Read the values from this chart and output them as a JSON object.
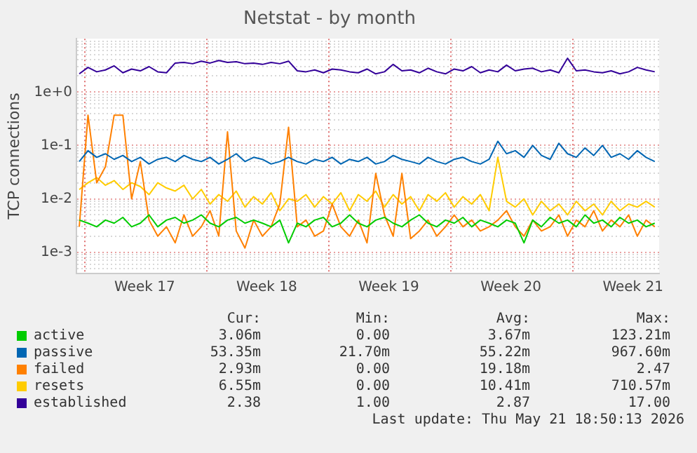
{
  "chart_data": {
    "type": "line",
    "title": "Netstat - by month",
    "ylabel": "TCP connections",
    "log": "y",
    "grid": "y",
    "legend": "bottom",
    "x": [
      "2026-04-18T18:00",
      "2026-04-19T06:00",
      "2026-04-19T18:00",
      "2026-04-20T06:00",
      "2026-04-20T18:00",
      "2026-04-21T06:00",
      "2026-04-21T18:00",
      "2026-04-22T06:00",
      "2026-04-22T18:00",
      "2026-04-23T06:00",
      "2026-04-23T18:00",
      "2026-04-24T06:00",
      "2026-04-24T18:00",
      "2026-04-25T06:00",
      "2026-04-25T18:00",
      "2026-04-26T06:00",
      "2026-04-26T18:00",
      "2026-04-27T06:00",
      "2026-04-27T18:00",
      "2026-04-28T06:00",
      "2026-04-28T18:00",
      "2026-04-29T06:00",
      "2026-04-29T18:00",
      "2026-04-30T06:00",
      "2026-04-30T18:00",
      "2026-05-01T06:00",
      "2026-05-01T18:00",
      "2026-05-02T06:00",
      "2026-05-02T18:00",
      "2026-05-03T06:00",
      "2026-05-03T18:00",
      "2026-05-04T06:00",
      "2026-05-04T18:00",
      "2026-05-05T06:00",
      "2026-05-05T18:00",
      "2026-05-06T06:00",
      "2026-05-06T18:00",
      "2026-05-07T06:00",
      "2026-05-07T18:00",
      "2026-05-08T06:00",
      "2026-05-08T18:00",
      "2026-05-09T06:00",
      "2026-05-09T18:00",
      "2026-05-10T06:00",
      "2026-05-10T18:00",
      "2026-05-11T06:00",
      "2026-05-11T18:00",
      "2026-05-12T06:00",
      "2026-05-12T18:00",
      "2026-05-13T06:00",
      "2026-05-13T18:00",
      "2026-05-14T06:00",
      "2026-05-14T18:00",
      "2026-05-15T06:00",
      "2026-05-15T18:00",
      "2026-05-16T06:00",
      "2026-05-16T18:00",
      "2026-05-17T06:00",
      "2026-05-17T18:00",
      "2026-05-18T06:00",
      "2026-05-18T18:00",
      "2026-05-19T06:00",
      "2026-05-19T18:00",
      "2026-05-20T06:00",
      "2026-05-20T18:00",
      "2026-05-21T06:00",
      "2026-05-21T18:00"
    ],
    "xlim": [
      "2026-04-18T14:00",
      "2026-05-22T00:00"
    ],
    "xticks": [
      {
        "value": "2026-04-22T12:00",
        "label": "Week 17"
      },
      {
        "value": "2026-04-29T12:00",
        "label": "Week 18"
      },
      {
        "value": "2026-05-06T12:00",
        "label": "Week 19"
      },
      {
        "value": "2026-05-13T12:00",
        "label": "Week 20"
      },
      {
        "value": "2026-05-20T12:00",
        "label": "Week 21"
      }
    ],
    "ylim": [
      0.0004,
      10
    ],
    "yticks": [
      {
        "value": 0.0005,
        "label": null
      },
      {
        "value": 0.0006,
        "label": null
      },
      {
        "value": 0.0007,
        "label": null
      },
      {
        "value": 0.0008,
        "label": null
      },
      {
        "value": 0.0009,
        "label": null
      },
      {
        "value": 0.001,
        "label": "1e-3"
      },
      {
        "value": 0.002,
        "label": null
      },
      {
        "value": 0.003,
        "label": null
      },
      {
        "value": 0.004,
        "label": null
      },
      {
        "value": 0.005,
        "label": null
      },
      {
        "value": 0.006,
        "label": null
      },
      {
        "value": 0.007,
        "label": null
      },
      {
        "value": 0.008,
        "label": null
      },
      {
        "value": 0.009,
        "label": null
      },
      {
        "value": 0.01,
        "label": "1e-2"
      },
      {
        "value": 0.02,
        "label": null
      },
      {
        "value": 0.03,
        "label": null
      },
      {
        "value": 0.04,
        "label": null
      },
      {
        "value": 0.05,
        "label": null
      },
      {
        "value": 0.06,
        "label": null
      },
      {
        "value": 0.07,
        "label": null
      },
      {
        "value": 0.08,
        "label": null
      },
      {
        "value": 0.09,
        "label": null
      },
      {
        "value": 0.1,
        "label": "1e-1"
      },
      {
        "value": 0.2,
        "label": null
      },
      {
        "value": 0.3,
        "label": null
      },
      {
        "value": 0.4,
        "label": null
      },
      {
        "value": 0.5,
        "label": null
      },
      {
        "value": 0.6,
        "label": null
      },
      {
        "value": 0.7,
        "label": null
      },
      {
        "value": 0.8,
        "label": null
      },
      {
        "value": 0.9,
        "label": null
      },
      {
        "value": 1,
        "label": "1e+0"
      },
      {
        "value": 2,
        "label": null
      },
      {
        "value": 3,
        "label": null
      },
      {
        "value": 4,
        "label": null
      },
      {
        "value": 5,
        "label": null
      },
      {
        "value": 6,
        "label": null
      },
      {
        "value": 7,
        "label": null
      },
      {
        "value": 8,
        "label": null
      },
      {
        "value": 9,
        "label": null
      }
    ],
    "ref_lines": [
      {
        "axis": "x",
        "value": "2026-04-19",
        "color": "#e07070",
        "line_style": "dotted"
      },
      {
        "axis": "x",
        "value": "2026-04-26",
        "color": "#e07070",
        "line_style": "dotted"
      },
      {
        "axis": "x",
        "value": "2026-05-03",
        "color": "#e07070",
        "line_style": "dotted"
      },
      {
        "axis": "x",
        "value": "2026-05-10",
        "color": "#e07070",
        "line_style": "dotted"
      },
      {
        "axis": "x",
        "value": "2026-05-17",
        "color": "#e07070",
        "line_style": "dotted"
      }
    ],
    "series": [
      {
        "name": "active",
        "color": "#00cc00",
        "values": [
          0.004,
          0.0035,
          0.003,
          0.004,
          0.0035,
          0.0045,
          0.003,
          0.0035,
          0.005,
          0.003,
          0.004,
          0.0045,
          0.0035,
          0.004,
          0.005,
          0.0035,
          0.003,
          0.004,
          0.0045,
          0.0035,
          0.004,
          0.0035,
          0.003,
          0.004,
          0.0015,
          0.0035,
          0.003,
          0.004,
          0.0045,
          0.003,
          0.0035,
          0.005,
          0.0035,
          0.003,
          0.004,
          0.0045,
          0.0035,
          0.003,
          0.004,
          0.005,
          0.0035,
          0.003,
          0.004,
          0.0035,
          0.0045,
          0.003,
          0.004,
          0.0035,
          0.003,
          0.004,
          0.0035,
          0.0015,
          0.004,
          0.003,
          0.0045,
          0.0035,
          0.004,
          0.003,
          0.005,
          0.0035,
          0.004,
          0.003,
          0.0045,
          0.0035,
          0.004,
          0.003,
          0.0035
        ]
      },
      {
        "name": "passive",
        "color": "#0066b3",
        "values": [
          0.05,
          0.08,
          0.06,
          0.07,
          0.055,
          0.065,
          0.05,
          0.06,
          0.045,
          0.055,
          0.06,
          0.05,
          0.065,
          0.055,
          0.05,
          0.06,
          0.045,
          0.055,
          0.07,
          0.05,
          0.06,
          0.055,
          0.045,
          0.05,
          0.06,
          0.05,
          0.045,
          0.055,
          0.05,
          0.06,
          0.045,
          0.055,
          0.05,
          0.06,
          0.045,
          0.05,
          0.065,
          0.055,
          0.05,
          0.045,
          0.06,
          0.05,
          0.045,
          0.055,
          0.06,
          0.05,
          0.045,
          0.055,
          0.12,
          0.07,
          0.08,
          0.06,
          0.1,
          0.065,
          0.055,
          0.11,
          0.07,
          0.06,
          0.09,
          0.065,
          0.1,
          0.06,
          0.07,
          0.055,
          0.08,
          0.06,
          0.05
        ]
      },
      {
        "name": "failed",
        "color": "#ff8000",
        "values": [
          0.003,
          0.37,
          0.02,
          0.04,
          0.37,
          0.37,
          0.01,
          0.05,
          0.004,
          0.002,
          0.003,
          0.0015,
          0.005,
          0.002,
          0.003,
          0.006,
          0.002,
          0.18,
          0.0025,
          0.0012,
          0.004,
          0.002,
          0.003,
          0.008,
          0.22,
          0.003,
          0.004,
          0.002,
          0.0025,
          0.008,
          0.003,
          0.002,
          0.004,
          0.0015,
          0.03,
          0.005,
          0.002,
          0.03,
          0.0018,
          0.0025,
          0.004,
          0.002,
          0.003,
          0.005,
          0.003,
          0.004,
          0.0025,
          0.003,
          0.004,
          0.006,
          0.003,
          0.002,
          0.004,
          0.0025,
          0.003,
          0.005,
          0.002,
          0.004,
          0.003,
          0.006,
          0.0025,
          0.004,
          0.003,
          0.005,
          0.002,
          0.004,
          0.003
        ]
      },
      {
        "name": "resets",
        "color": "#ffcc00",
        "values": [
          0.015,
          0.02,
          0.025,
          0.018,
          0.022,
          0.015,
          0.02,
          0.017,
          0.012,
          0.02,
          0.016,
          0.014,
          0.018,
          0.01,
          0.015,
          0.008,
          0.012,
          0.009,
          0.014,
          0.007,
          0.011,
          0.008,
          0.013,
          0.006,
          0.01,
          0.009,
          0.012,
          0.007,
          0.011,
          0.008,
          0.013,
          0.006,
          0.012,
          0.009,
          0.014,
          0.007,
          0.012,
          0.008,
          0.011,
          0.006,
          0.012,
          0.009,
          0.013,
          0.007,
          0.011,
          0.008,
          0.012,
          0.006,
          0.06,
          0.009,
          0.007,
          0.01,
          0.005,
          0.009,
          0.006,
          0.008,
          0.005,
          0.009,
          0.006,
          0.008,
          0.005,
          0.009,
          0.006,
          0.008,
          0.007,
          0.009,
          0.007
        ]
      },
      {
        "name": "established",
        "color": "#330099",
        "values": [
          2.2,
          2.9,
          2.4,
          2.6,
          3.1,
          2.3,
          2.7,
          2.5,
          3.0,
          2.4,
          2.3,
          3.5,
          3.6,
          3.4,
          3.8,
          3.5,
          3.9,
          3.6,
          3.7,
          3.4,
          3.5,
          3.3,
          3.6,
          3.4,
          3.8,
          2.5,
          2.4,
          2.6,
          2.3,
          2.7,
          2.6,
          2.4,
          2.3,
          2.7,
          2.2,
          2.4,
          3.3,
          2.5,
          2.6,
          2.3,
          2.8,
          2.4,
          2.2,
          2.7,
          2.5,
          3.0,
          2.3,
          2.6,
          2.4,
          3.2,
          2.5,
          2.7,
          2.8,
          2.4,
          2.6,
          2.3,
          4.3,
          2.5,
          2.6,
          2.4,
          2.3,
          2.5,
          2.2,
          2.4,
          2.9,
          2.6,
          2.4
        ]
      }
    ],
    "annotations": [
      "Cur:",
      "Min:",
      "Avg:",
      "Max:",
      "3.06m",
      "0.00",
      "3.67m",
      "123.21m",
      "53.35m",
      "21.70m",
      "55.22m",
      "967.60m",
      "2.93m",
      "0.00",
      "19.18m",
      "2.47",
      "6.55m",
      "0.00",
      "10.41m",
      "710.57m",
      "2.38",
      "1.00",
      "2.87",
      "17.00",
      "Last update: Thu May 21 18:50:13 2026"
    ]
  }
}
